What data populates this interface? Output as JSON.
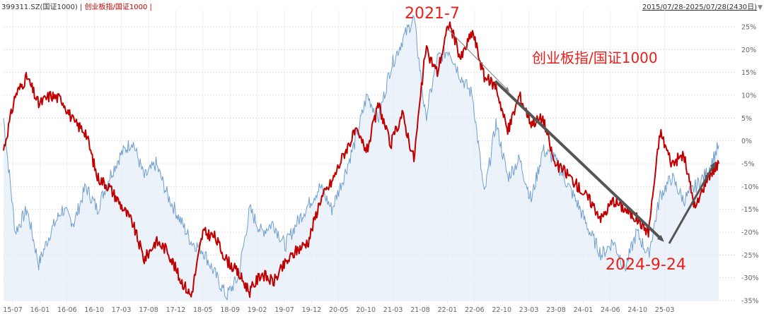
{
  "header": {
    "code": "399311.SZ(国证1000)",
    "sep1": " | ",
    "series_label": "创业板指/国证1000",
    "sep2": " |",
    "date_range": "2015/07/28-2025/07/28(2430日)",
    "dropdown_icon": "triangle-down-icon"
  },
  "annotations": {
    "peak_label": "2021-7",
    "series_title": "创业板指/国证1000",
    "trough_label": "2024-9-24"
  },
  "colors": {
    "ratio_line": "#c00000",
    "index_line": "#6f9fcf",
    "index_fill": "#e4ecf6",
    "annotation": "#e8201c",
    "arrow": "#555555",
    "thin_arrow": "#888888"
  },
  "chart_data": {
    "type": "line",
    "x_ticks": [
      "15-07",
      "16-01",
      "16-06",
      "16-10",
      "17-03",
      "17-08",
      "17-12",
      "18-05",
      "18-09",
      "19-02",
      "19-07",
      "19-12",
      "20-05",
      "20-10",
      "21-03",
      "21-08",
      "22-01",
      "22-06",
      "22-10",
      "23-03",
      "23-08",
      "24-01",
      "24-06",
      "24-10",
      "25-03"
    ],
    "y_ticks": [
      "25%",
      "20%",
      "15%",
      "10%",
      "5%",
      "0%",
      "-5%",
      "-10%",
      "-15%",
      "-20%",
      "-25%",
      "-30%",
      "-35%"
    ],
    "ylim": [
      -35,
      27
    ],
    "grid": true,
    "series": [
      {
        "name": "创业板指/国证1000",
        "points": [
          [
            0,
            -2
          ],
          [
            0.25,
            10
          ],
          [
            0.5,
            14
          ],
          [
            0.75,
            8
          ],
          [
            1,
            10
          ],
          [
            1.25,
            9
          ],
          [
            1.5,
            4
          ],
          [
            1.75,
            2
          ],
          [
            2,
            -8
          ],
          [
            2.25,
            -10
          ],
          [
            2.5,
            -14
          ],
          [
            2.75,
            -18
          ],
          [
            3,
            -26
          ],
          [
            3.25,
            -22
          ],
          [
            3.5,
            -24
          ],
          [
            3.75,
            -30
          ],
          [
            4,
            -34
          ],
          [
            4.25,
            -20
          ],
          [
            4.5,
            -21
          ],
          [
            4.75,
            -26
          ],
          [
            5,
            -29
          ],
          [
            5.25,
            -33
          ],
          [
            5.5,
            -29
          ],
          [
            5.75,
            -31
          ],
          [
            6,
            -27
          ],
          [
            6.25,
            -24
          ],
          [
            6.5,
            -22
          ],
          [
            6.75,
            -13
          ],
          [
            7,
            -9
          ],
          [
            7.25,
            -3
          ],
          [
            7.5,
            2
          ],
          [
            7.75,
            -2
          ],
          [
            8,
            8
          ],
          [
            8.25,
            -1
          ],
          [
            8.5,
            6
          ],
          [
            8.75,
            -4
          ],
          [
            9,
            20
          ],
          [
            9.25,
            15
          ],
          [
            9.5,
            26
          ],
          [
            9.75,
            18
          ],
          [
            10,
            24
          ],
          [
            10.25,
            14
          ],
          [
            10.5,
            12
          ],
          [
            10.75,
            2
          ],
          [
            11,
            10
          ],
          [
            11.25,
            4
          ],
          [
            11.5,
            5
          ],
          [
            11.75,
            -5
          ],
          [
            12,
            -7
          ],
          [
            12.25,
            -10
          ],
          [
            12.5,
            -13
          ],
          [
            12.75,
            -17
          ],
          [
            13,
            -13
          ],
          [
            13.25,
            -15
          ],
          [
            13.5,
            -17
          ],
          [
            13.75,
            -20
          ],
          [
            14,
            2
          ],
          [
            14.25,
            -5
          ],
          [
            14.5,
            -3
          ],
          [
            14.75,
            -15
          ],
          [
            15,
            -8
          ],
          [
            15.25,
            -5
          ]
        ]
      },
      {
        "name": "399311.SZ(国证1000)",
        "points": [
          [
            0,
            5
          ],
          [
            0.25,
            -20
          ],
          [
            0.5,
            -15
          ],
          [
            0.75,
            -27
          ],
          [
            1,
            -20
          ],
          [
            1.25,
            -15
          ],
          [
            1.5,
            -18
          ],
          [
            1.75,
            -10
          ],
          [
            2,
            -15
          ],
          [
            2.25,
            -8
          ],
          [
            2.5,
            -3
          ],
          [
            2.75,
            0
          ],
          [
            3,
            -8
          ],
          [
            3.25,
            -5
          ],
          [
            3.5,
            -12
          ],
          [
            3.75,
            -17
          ],
          [
            4,
            -22
          ],
          [
            4.25,
            -24
          ],
          [
            4.5,
            -29
          ],
          [
            4.75,
            -34
          ],
          [
            5,
            -30
          ],
          [
            5.25,
            -15
          ],
          [
            5.5,
            -20
          ],
          [
            5.75,
            -18
          ],
          [
            6,
            -23
          ],
          [
            6.25,
            -18
          ],
          [
            6.5,
            -14
          ],
          [
            6.75,
            -10
          ],
          [
            7,
            -15
          ],
          [
            7.25,
            -8
          ],
          [
            7.5,
            0
          ],
          [
            7.75,
            10
          ],
          [
            8,
            5
          ],
          [
            8.25,
            16
          ],
          [
            8.5,
            22
          ],
          [
            8.75,
            27
          ],
          [
            9,
            5
          ],
          [
            9.25,
            18
          ],
          [
            9.5,
            20
          ],
          [
            9.75,
            14
          ],
          [
            10,
            10
          ],
          [
            10.25,
            -12
          ],
          [
            10.5,
            4
          ],
          [
            10.75,
            -8
          ],
          [
            11,
            -4
          ],
          [
            11.25,
            -13
          ],
          [
            11.5,
            -2
          ],
          [
            11.75,
            -4
          ],
          [
            12,
            -9
          ],
          [
            12.25,
            -14
          ],
          [
            12.5,
            -20
          ],
          [
            12.75,
            -25
          ],
          [
            13,
            -22
          ],
          [
            13.25,
            -28
          ],
          [
            13.5,
            -20
          ],
          [
            13.75,
            -25
          ],
          [
            14,
            -12
          ],
          [
            14.25,
            -8
          ],
          [
            14.5,
            -13
          ],
          [
            14.75,
            -10
          ],
          [
            15,
            -7
          ],
          [
            15.25,
            -1
          ]
        ]
      }
    ]
  }
}
